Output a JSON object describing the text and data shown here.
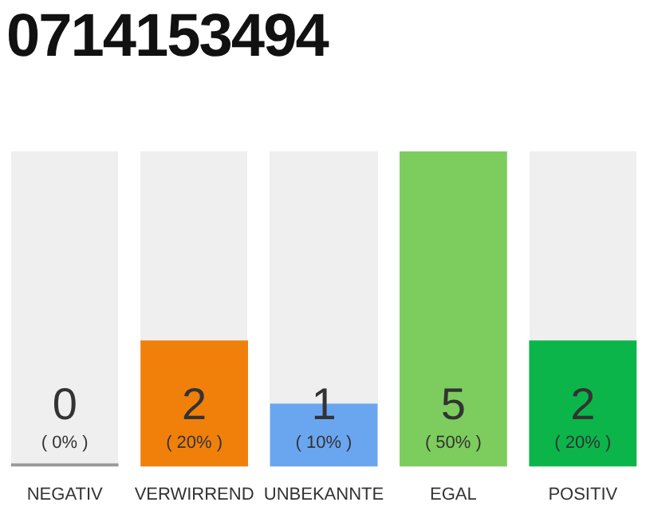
{
  "chart_data": {
    "type": "bar",
    "title": "0714153494",
    "categories": [
      "NEGATIV",
      "VERWIRREND",
      "UNBEKANNTE",
      "EGAL",
      "POSITIV"
    ],
    "values": [
      0,
      2,
      1,
      5,
      2
    ],
    "colors": [
      "#999999",
      "#f0800a",
      "#6aa6f0",
      "#7dcd5e",
      "#0bb54a"
    ],
    "ylim": [
      0,
      5
    ],
    "tick_labels": "x",
    "grid": false,
    "legend": false,
    "data_labels": true,
    "annotations": [
      "( 0% )",
      "( 20% )",
      "( 10% )",
      "( 50% )",
      "( 20% )"
    ]
  }
}
